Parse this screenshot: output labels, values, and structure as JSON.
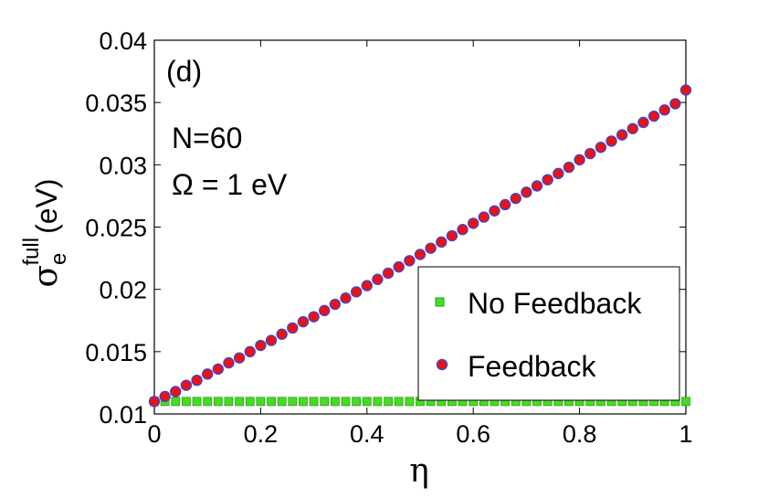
{
  "chart_data": {
    "type": "scatter",
    "panel_label": "(d)",
    "annotations": [
      "N=60",
      "Ω = 1 eV"
    ],
    "xlabel": "η",
    "ylabel": {
      "symbol": "σ",
      "subscript": "e",
      "superscript": "full",
      "unit": "(eV)"
    },
    "xlim": [
      0,
      1
    ],
    "ylim": [
      0.01,
      0.04
    ],
    "xticks": [
      0,
      0.2,
      0.4,
      0.6,
      0.8,
      1
    ],
    "xtick_labels": [
      "0",
      "0.2",
      "0.4",
      "0.6",
      "0.8",
      "1"
    ],
    "yticks": [
      0.01,
      0.015,
      0.02,
      0.025,
      0.03,
      0.035,
      0.04
    ],
    "ytick_labels": [
      "0.01",
      "0.015",
      "0.02",
      "0.025",
      "0.03",
      "0.035",
      "0.04"
    ],
    "grid": false,
    "legend_position": "bottom-right",
    "series": [
      {
        "name": "No Feedback",
        "marker": "square",
        "color": "#44dd22",
        "edge_color": "#2f9b18",
        "x": [
          0,
          0.02,
          0.04,
          0.06,
          0.08,
          0.1,
          0.12,
          0.14,
          0.16,
          0.18,
          0.2,
          0.22,
          0.24,
          0.26,
          0.28,
          0.3,
          0.32,
          0.34,
          0.36,
          0.38,
          0.4,
          0.42,
          0.44,
          0.46,
          0.48,
          0.5,
          0.52,
          0.54,
          0.56,
          0.58,
          0.6,
          0.62,
          0.64,
          0.66,
          0.68,
          0.7,
          0.72,
          0.74,
          0.76,
          0.78,
          0.8,
          0.82,
          0.84,
          0.86,
          0.88,
          0.9,
          0.92,
          0.94,
          0.96,
          0.98,
          1.0
        ],
        "y": [
          0.011,
          0.011,
          0.011,
          0.011,
          0.011,
          0.011,
          0.011,
          0.011,
          0.011,
          0.011,
          0.011,
          0.011,
          0.011,
          0.011,
          0.011,
          0.011,
          0.011,
          0.011,
          0.011,
          0.011,
          0.011,
          0.011,
          0.011,
          0.011,
          0.011,
          0.011,
          0.011,
          0.011,
          0.011,
          0.011,
          0.011,
          0.011,
          0.011,
          0.011,
          0.011,
          0.011,
          0.011,
          0.011,
          0.011,
          0.011,
          0.011,
          0.011,
          0.011,
          0.011,
          0.011,
          0.011,
          0.011,
          0.011,
          0.011,
          0.011,
          0.011
        ]
      },
      {
        "name": "Feedback",
        "marker": "circle",
        "color": "#ee1111",
        "edge_color": "#4444cc",
        "x": [
          0,
          0.02,
          0.04,
          0.06,
          0.08,
          0.1,
          0.12,
          0.14,
          0.16,
          0.18,
          0.2,
          0.22,
          0.24,
          0.26,
          0.28,
          0.3,
          0.32,
          0.34,
          0.36,
          0.38,
          0.4,
          0.42,
          0.44,
          0.46,
          0.48,
          0.5,
          0.52,
          0.54,
          0.56,
          0.58,
          0.6,
          0.62,
          0.64,
          0.66,
          0.68,
          0.7,
          0.72,
          0.74,
          0.76,
          0.78,
          0.8,
          0.82,
          0.84,
          0.86,
          0.88,
          0.9,
          0.92,
          0.94,
          0.96,
          0.98,
          1.0
        ],
        "y": [
          0.011,
          0.0114,
          0.0118,
          0.0123,
          0.0127,
          0.0132,
          0.0136,
          0.0141,
          0.0145,
          0.015,
          0.0155,
          0.0159,
          0.0164,
          0.0169,
          0.0174,
          0.0178,
          0.0183,
          0.0188,
          0.0193,
          0.0198,
          0.0203,
          0.0208,
          0.0213,
          0.0218,
          0.0223,
          0.0228,
          0.0233,
          0.0238,
          0.0243,
          0.0248,
          0.0253,
          0.0258,
          0.0263,
          0.0268,
          0.0273,
          0.0278,
          0.0283,
          0.0288,
          0.0293,
          0.0298,
          0.0304,
          0.0309,
          0.0314,
          0.0319,
          0.0324,
          0.0329,
          0.0334,
          0.0339,
          0.0344,
          0.0349,
          0.036
        ]
      }
    ]
  }
}
